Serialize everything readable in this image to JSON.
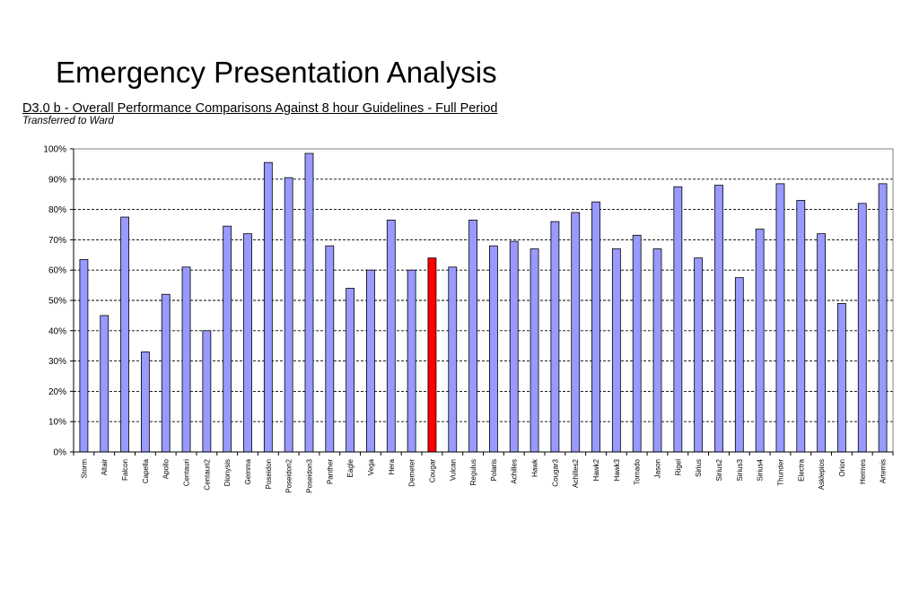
{
  "slide": {
    "title": "Emergency Presentation Analysis"
  },
  "chart_data": {
    "type": "bar",
    "title": "D3.0 b - Overall Performance Comparisons Against 8 hour Guidelines - Full Period",
    "subtitle": "Transferred to Ward",
    "xlabel": "",
    "ylabel": "",
    "ylim": [
      0,
      100
    ],
    "y_ticks": [
      "0%",
      "10%",
      "20%",
      "30%",
      "40%",
      "50%",
      "60%",
      "70%",
      "80%",
      "90%",
      "100%"
    ],
    "grid": true,
    "legend": "none",
    "bar_color": "#9999ff",
    "highlight_color": "#ff0000",
    "highlight_category": "Cougar",
    "categories": [
      "Storm",
      "Altair",
      "Falcon",
      "Capella",
      "Apollo",
      "Centauri",
      "Centauri2",
      "Dionysis",
      "Gemma",
      "Poseidon",
      "Poseidon2",
      "Poseidon3",
      "Panther",
      "Eagle",
      "Vega",
      "Hera",
      "Demeter",
      "Cougar",
      "Vulcan",
      "Regulus",
      "Polaris",
      "Achilles",
      "Hawk",
      "Cougar3",
      "Achilles2",
      "Hawk2",
      "Hawk3",
      "Tornado",
      "Jason",
      "Rigel",
      "Sirius",
      "Sirius2",
      "Sirius3",
      "Sirius4",
      "Thunder",
      "Electra",
      "Asklepios",
      "Orion",
      "Hermes",
      "Artemis"
    ],
    "values": [
      63.5,
      45,
      77.5,
      33,
      52,
      61,
      40,
      74.5,
      72,
      95.5,
      90.5,
      98.5,
      68,
      54,
      60,
      76.5,
      60,
      64,
      61,
      76.5,
      68,
      69.5,
      67,
      76,
      79,
      82.5,
      67,
      71.5,
      67,
      87.5,
      64,
      88,
      57.5,
      73.5,
      88.5,
      83,
      72,
      49,
      82,
      88.5
    ]
  }
}
